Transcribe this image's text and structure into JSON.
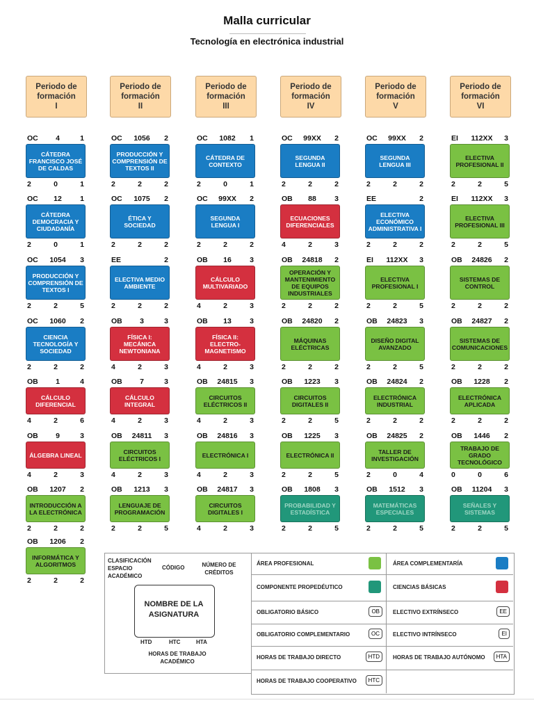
{
  "header": {
    "title": "Malla curricular",
    "subtitle": "Tecnología en electrónica industrial"
  },
  "periods": [
    {
      "label": "Periodo de formación",
      "numeral": "I"
    },
    {
      "label": "Periodo de formación",
      "numeral": "II"
    },
    {
      "label": "Periodo de formación",
      "numeral": "III"
    },
    {
      "label": "Periodo de formación",
      "numeral": "IV"
    },
    {
      "label": "Periodo de formación",
      "numeral": "V"
    },
    {
      "label": "Periodo de formación",
      "numeral": "VI"
    }
  ],
  "columns": [
    [
      {
        "type": "OC",
        "code": 4,
        "credits": 1,
        "name": "CÁTEDRA FRANCISCO JOSÉ DE CALDAS",
        "htd": 2,
        "htc": 0,
        "hta": 1,
        "color": "#1a7dc4"
      },
      {
        "type": "OC",
        "code": 12,
        "credits": 1,
        "name": "CÁTEDRA DEMOCRACIA Y CIUDADANÍA",
        "htd": 2,
        "htc": 0,
        "hta": 1,
        "color": "#1a7dc4"
      },
      {
        "type": "OC",
        "code": 1054,
        "credits": 3,
        "name": "PRODUCCIÓN Y COMPRENSIÓN DE TEXTOS I",
        "htd": 2,
        "htc": 2,
        "hta": 5,
        "color": "#1a7dc4"
      },
      {
        "type": "OC",
        "code": 1060,
        "credits": 2,
        "name": "CIENCIA TECNOLOGÍA Y SOCIEDAD",
        "htd": 2,
        "htc": 2,
        "hta": 2,
        "color": "#1a7dc4"
      },
      {
        "type": "OB",
        "code": 1,
        "credits": 4,
        "name": "CÁLCULO DIFERENCIAL",
        "htd": 4,
        "htc": 2,
        "hta": 6,
        "color": "#d4303f"
      },
      {
        "type": "OB",
        "code": 9,
        "credits": 3,
        "name": "ÁLGEBRA LINEAL",
        "htd": 4,
        "htc": 2,
        "hta": 3,
        "color": "#d4303f"
      },
      {
        "type": "OB",
        "code": 1207,
        "credits": 2,
        "name": "INTRODUCCIÓN A LA ELECTRÓNICA",
        "htd": 2,
        "htc": 2,
        "hta": 2,
        "color": "#7ac143"
      },
      {
        "type": "OB",
        "code": 1206,
        "credits": 2,
        "name": "INFORMÁTICA Y ALGORITMOS",
        "htd": 2,
        "htc": 2,
        "hta": 2,
        "color": "#7ac143"
      }
    ],
    [
      {
        "type": "OC",
        "code": 1056,
        "credits": 2,
        "name": "PRODUCCIÓN Y COMPRENSIÓN DE TEXTOS II",
        "htd": 2,
        "htc": 2,
        "hta": 2,
        "color": "#1a7dc4"
      },
      {
        "type": "OC",
        "code": 1075,
        "credits": 2,
        "name": "ÉTICA Y SOCIEDAD",
        "htd": 2,
        "htc": 2,
        "hta": 2,
        "color": "#1a7dc4"
      },
      {
        "type": "EE",
        "credits": 2,
        "name": "ELECTIVA MEDIO AMBIENTE",
        "htd": 2,
        "htc": 2,
        "hta": 2,
        "color": "#1a7dc4"
      },
      {
        "type": "OB",
        "code": 3,
        "credits": 3,
        "name": "FÍSICA I: MECÁNICA NEWTONIANA",
        "htd": 4,
        "htc": 2,
        "hta": 3,
        "color": "#d4303f"
      },
      {
        "type": "OB",
        "code": 7,
        "credits": 3,
        "name": "CÁLCULO INTEGRAL",
        "htd": 4,
        "htc": 2,
        "hta": 3,
        "color": "#d4303f"
      },
      {
        "type": "OB",
        "code": 24811,
        "credits": 3,
        "name": "CIRCUITOS ELÉCTRICOS I",
        "htd": 4,
        "htc": 2,
        "hta": 3,
        "color": "#7ac143"
      },
      {
        "type": "OB",
        "code": 1213,
        "credits": 3,
        "name": "LENGUAJE DE PROGRAMACIÓN",
        "htd": 2,
        "htc": 2,
        "hta": 5,
        "color": "#7ac143"
      }
    ],
    [
      {
        "type": "OC",
        "code": 1082,
        "credits": 1,
        "name": "CÁTEDRA DE CONTEXTO",
        "htd": 2,
        "htc": 0,
        "hta": 1,
        "color": "#1a7dc4"
      },
      {
        "type": "OC",
        "code": "99XX",
        "credits": 2,
        "name": "SEGUNDA LENGUA I",
        "htd": 2,
        "htc": 2,
        "hta": 2,
        "color": "#1a7dc4"
      },
      {
        "type": "OB",
        "code": 16,
        "credits": 3,
        "name": "CÁLCULO MULTIVARIADO",
        "htd": 4,
        "htc": 2,
        "hta": 3,
        "color": "#d4303f"
      },
      {
        "type": "OB",
        "code": 13,
        "credits": 3,
        "name": "FÍSICA II: ELECTRO-MAGNETISMO",
        "htd": 4,
        "htc": 2,
        "hta": 3,
        "color": "#d4303f"
      },
      {
        "type": "OB",
        "code": 24815,
        "credits": 3,
        "name": "CIRCUITOS ELÉCTRICOS II",
        "htd": 4,
        "htc": 2,
        "hta": 3,
        "color": "#7ac143"
      },
      {
        "type": "OB",
        "code": 24816,
        "credits": 3,
        "name": "ELECTRÓNICA I",
        "htd": 4,
        "htc": 2,
        "hta": 3,
        "color": "#7ac143"
      },
      {
        "type": "OB",
        "code": 24817,
        "credits": 3,
        "name": "CIRCUITOS DIGITALES I",
        "htd": 4,
        "htc": 2,
        "hta": 3,
        "color": "#7ac143"
      }
    ],
    [
      {
        "type": "OC",
        "code": "99XX",
        "credits": 2,
        "name": "SEGUNDA LENGUA II",
        "htd": 2,
        "htc": 2,
        "hta": 2,
        "color": "#1a7dc4"
      },
      {
        "type": "OB",
        "code": 88,
        "credits": 3,
        "name": "ECUACIONES DIFERENCIALES",
        "htd": 4,
        "htc": 2,
        "hta": 3,
        "color": "#d4303f"
      },
      {
        "type": "OB",
        "code": 24818,
        "credits": 2,
        "name": "OPERACIÓN Y MANTENIMIENTO DE EQUIPOS INDUSTRIALES",
        "htd": 2,
        "htc": 2,
        "hta": 2,
        "color": "#7ac143"
      },
      {
        "type": "OB",
        "code": 24820,
        "credits": 2,
        "name": "MÁQUINAS ELÉCTRICAS",
        "htd": 2,
        "htc": 2,
        "hta": 2,
        "color": "#7ac143"
      },
      {
        "type": "OB",
        "code": 1223,
        "credits": 3,
        "name": "CIRCUITOS DIGITALES II",
        "htd": 2,
        "htc": 2,
        "hta": 5,
        "color": "#7ac143"
      },
      {
        "type": "OB",
        "code": 1225,
        "credits": 3,
        "name": "ELECTRÓNICA II",
        "htd": 2,
        "htc": 2,
        "hta": 5,
        "color": "#7ac143"
      },
      {
        "type": "OB",
        "code": 1808,
        "credits": 3,
        "name": "PROBABILIDAD Y ESTADÍSTICA",
        "htd": 2,
        "htc": 2,
        "hta": 5,
        "color": "#21977a"
      }
    ],
    [
      {
        "type": "OC",
        "code": "99XX",
        "credits": 2,
        "name": "SEGUNDA LENGUA III",
        "htd": 2,
        "htc": 2,
        "hta": 2,
        "color": "#1a7dc4"
      },
      {
        "type": "EE",
        "credits": 2,
        "name": "ELECTIVA ECONÓMICO ADMINISTRATIVA I",
        "htd": 2,
        "htc": 2,
        "hta": 2,
        "color": "#1a7dc4"
      },
      {
        "type": "EI",
        "code": "112XX",
        "credits": 3,
        "name": "ELECTIVA PROFESIONAL I",
        "htd": 2,
        "htc": 2,
        "hta": 5,
        "color": "#7ac143"
      },
      {
        "type": "OB",
        "code": 24823,
        "credits": 3,
        "name": "DISEÑO DIGITAL AVANZADO",
        "htd": 2,
        "htc": 2,
        "hta": 5,
        "color": "#7ac143"
      },
      {
        "type": "OB",
        "code": 24824,
        "credits": 2,
        "name": "ELECTRÓNICA INDUSTRIAL",
        "htd": 2,
        "htc": 2,
        "hta": 2,
        "color": "#7ac143"
      },
      {
        "type": "OB",
        "code": 24825,
        "credits": 2,
        "name": "TALLER DE INVESTIGACIÓN",
        "htd": 2,
        "htc": 0,
        "hta": 4,
        "color": "#7ac143"
      },
      {
        "type": "OB",
        "code": 1512,
        "credits": 3,
        "name": "MATEMÁTICAS ESPECIALES",
        "htd": 2,
        "htc": 2,
        "hta": 5,
        "color": "#21977a"
      }
    ],
    [
      {
        "type": "EI",
        "code": "112XX",
        "credits": 3,
        "name": "ELECTIVA PROFESIONAL II",
        "htd": 2,
        "htc": 2,
        "hta": 5,
        "color": "#7ac143"
      },
      {
        "type": "EI",
        "code": "112XX",
        "credits": 3,
        "name": "ELECTIVA PROFESIONAL III",
        "htd": 2,
        "htc": 2,
        "hta": 5,
        "color": "#7ac143"
      },
      {
        "type": "OB",
        "code": 24826,
        "credits": 2,
        "name": "SISTEMAS DE CONTROL",
        "htd": 2,
        "htc": 2,
        "hta": 2,
        "color": "#7ac143"
      },
      {
        "type": "OB",
        "code": 24827,
        "credits": 2,
        "name": "SISTEMAS DE COMUNICACIONES",
        "htd": 2,
        "htc": 2,
        "hta": 2,
        "color": "#7ac143"
      },
      {
        "type": "OB",
        "code": 1228,
        "credits": 2,
        "name": "ELECTRÓNICA APLICADA",
        "htd": 2,
        "htc": 2,
        "hta": 2,
        "color": "#7ac143"
      },
      {
        "type": "OB",
        "code": 1446,
        "credits": 2,
        "name": "TRABAJO DE GRADO TECNOLÓGICO",
        "htd": 0,
        "htc": 0,
        "hta": 6,
        "color": "#7ac143"
      },
      {
        "type": "OB",
        "code": 11204,
        "credits": 3,
        "name": "SEÑALES Y SISTEMAS",
        "htd": 2,
        "htc": 2,
        "hta": 5,
        "color": "#21977a"
      }
    ]
  ],
  "legend": {
    "classification": "CLASIFICACIÓN ESPACIO ACADÉMICO",
    "code": "CÓDIGO",
    "credits": "NÚMERO DE CRÉDITOS",
    "name": "NOMBRE DE LA ASIGNATURA",
    "htd": "HTD",
    "htc": "HTC",
    "hta": "HTA",
    "hours": "HORAS DE TRABAJO ACADÉMICO"
  },
  "key": [
    {
      "label": "ÁREA PROFESIONAL",
      "color": "#7ac143"
    },
    {
      "label": "ÁREA COMPLEMENTARÍA",
      "color": "#1a7dc4"
    },
    {
      "label": "COMPONENTE PROPEDÉUTICO",
      "color": "#21977a"
    },
    {
      "label": "CIENCIAS BÁSICAS",
      "color": "#d4303f"
    },
    {
      "label": "OBLIGATORIO BÁSICO",
      "badge": "OB"
    },
    {
      "label": "ELECTIVO EXTRÍNSECO",
      "badge": "EE"
    },
    {
      "label": "OBLIGATORIO COMPLEMENTARIO",
      "badge": "OC"
    },
    {
      "label": "ELECTIVO INTRÍNSECO",
      "badge": "EI"
    },
    {
      "label": "HORAS DE TRABAJO DIRECTO",
      "badge": "HTD"
    },
    {
      "label": "HORAS DE TRABAJO AUTÓNOMO",
      "badge": "HTA"
    },
    {
      "label": "HORAS DE TRABAJO COOPERATIVO",
      "badge": "HTC"
    }
  ]
}
